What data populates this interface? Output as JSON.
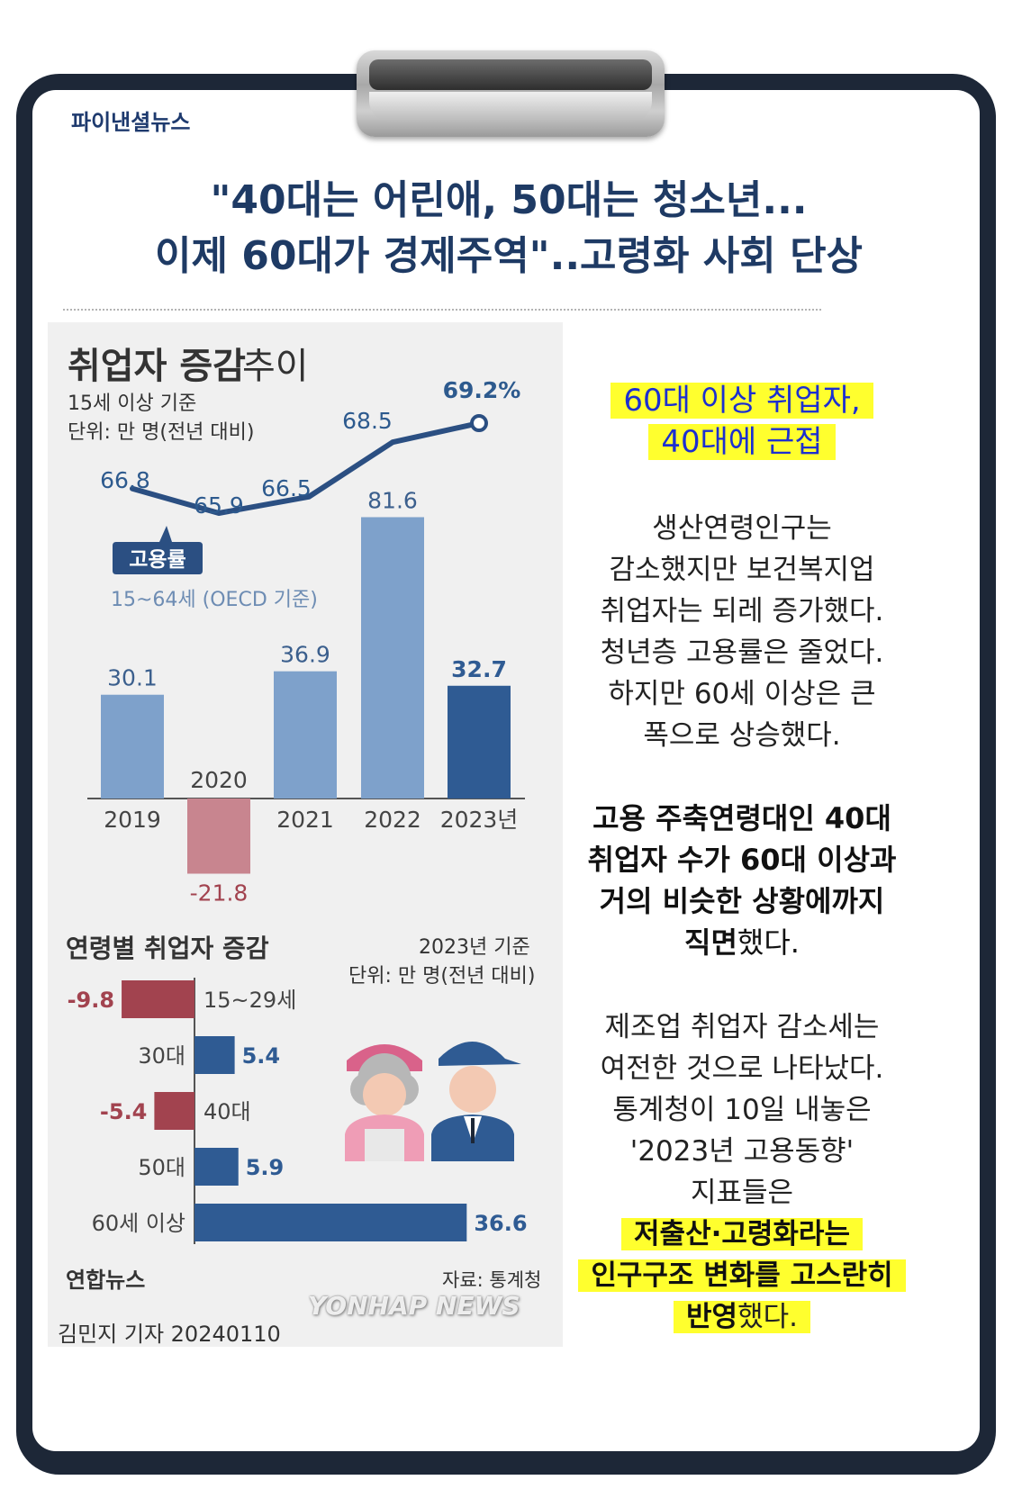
{
  "brand": "파이낸셜뉴스",
  "headline": {
    "line1": "\"40대는 어린애, 50대는 청소년...",
    "line2": "이제 60대가 경제주역\"..고령화 사회 단상"
  },
  "infographic": {
    "title_bold": "취업자 증감",
    "title_light": "추이",
    "basis": "15세 이상 기준",
    "unit": "단위: 만 명(전년 대비)",
    "rate_label": "고용률",
    "rate_basis": "15~64세 (OECD 기준)",
    "age_title": "연령별 취업자 증감",
    "age_basis": "2023년 기준",
    "age_unit": "단위: 만 명(전년 대비)",
    "logo": "연합뉴스",
    "source": "자료: 통계청",
    "watermark": "YONHAP NEWS"
  },
  "byline": "김민지 기자 20240110",
  "chart_data": [
    {
      "type": "bar",
      "title": "취업자 증감 추이",
      "categories": [
        "2019",
        "2020",
        "2021",
        "2022",
        "2023년"
      ],
      "values": [
        30.1,
        -21.8,
        36.9,
        81.6,
        32.7
      ],
      "value_labels": [
        "30.1",
        "-21.8",
        "36.9",
        "81.6",
        "32.7"
      ],
      "ylabel": "단위: 만 명(전년 대비)",
      "colors": {
        "positive": "#7ea1cb",
        "negative": "#c8858f",
        "highlight": "#2f5b93"
      },
      "line_series": {
        "name": "고용률",
        "values": [
          66.8,
          65.9,
          66.5,
          68.5,
          69.2
        ],
        "labels": [
          "66.8",
          "65.9",
          "66.5",
          "68.5",
          "69.2%"
        ],
        "color": "#2b4f82"
      }
    },
    {
      "type": "bar",
      "orientation": "horizontal",
      "title": "연령별 취업자 증감",
      "categories": [
        "15~29세",
        "30대",
        "40대",
        "50대",
        "60세 이상"
      ],
      "values": [
        -9.8,
        5.4,
        -5.4,
        5.9,
        36.6
      ],
      "value_labels": [
        "-9.8",
        "5.4",
        "-5.4",
        "5.9",
        "36.6"
      ],
      "colors": {
        "positive": "#2f5b93",
        "negative": "#a2434f"
      }
    }
  ],
  "right_column": {
    "headline_lines": [
      "60대 이상 취업자,",
      "40대에 근접"
    ],
    "para1": [
      "생산연령인구는",
      "감소했지만 보건복지업",
      "취업자는 되레 증가했다.",
      "청년층 고용률은 줄었다.",
      "하지만 60세 이상은 큰",
      "폭으로 상승했다."
    ],
    "para2": [
      "고용 주축연령대인 40대",
      "취업자 수가 60대 이상과",
      "거의 비슷한 상황에까지"
    ],
    "para2_last_bold": "직면",
    "para2_last_rest": "했다.",
    "para3": [
      "제조업 취업자 감소세는",
      "여전한 것으로 나타났다.",
      "통계청이 10일 내놓은",
      "'2023년 고용동향'",
      "지표들은"
    ],
    "para3_hl1": "저출산·고령화라는",
    "para3_hl2": "인구구조 변화를 고스란히",
    "para3_hl3_bold": "반영",
    "para3_hl3_rest": "했다."
  }
}
